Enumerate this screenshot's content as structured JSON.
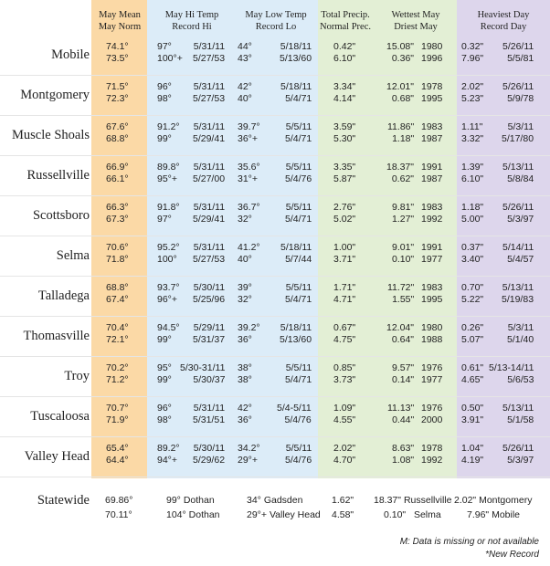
{
  "headers": {
    "mean": [
      "May Mean",
      "May Norm"
    ],
    "hi": [
      "May Hi Temp",
      "Record Hi"
    ],
    "lo": [
      "May Low Temp",
      "Record Lo"
    ],
    "precip": [
      "Total Precip.",
      "Normal Prec."
    ],
    "wettest": [
      "Wettest May",
      "Driest May"
    ],
    "heaviest": [
      "Heaviest Day",
      "Record Day"
    ]
  },
  "colors": {
    "mean": "#fbd9a6",
    "temps": "#dcecf8",
    "precip": "#e3efd5",
    "heaviest": "#ddd6ec"
  },
  "rows": [
    {
      "city": "Mobile",
      "mean": "74.1°",
      "norm": "73.5°",
      "hi": "97°",
      "hi_date": "5/31/11",
      "rechi": "100°+",
      "rechi_date": "5/27/53",
      "lo": "44°",
      "lo_date": "5/18/11",
      "reclo": "43°",
      "reclo_date": "5/13/60",
      "precip": "0.42\"",
      "normprec": "6.10\"",
      "wet": "15.08\"",
      "wet_yr": "1980",
      "dry": "0.36\"",
      "dry_yr": "1996",
      "heavy": "0.32\"",
      "heavy_date": "5/26/11",
      "recday": "7.96\"",
      "recday_date": "5/5/81"
    },
    {
      "city": "Montgomery",
      "mean": "71.5°",
      "norm": "72.3°",
      "hi": "96°",
      "hi_date": "5/31/11",
      "rechi": "98°",
      "rechi_date": "5/27/53",
      "lo": "42°",
      "lo_date": "5/18/11",
      "reclo": "40°",
      "reclo_date": "5/4/71",
      "precip": "3.34\"",
      "normprec": "4.14\"",
      "wet": "12.01\"",
      "wet_yr": "1978",
      "dry": "0.68\"",
      "dry_yr": "1995",
      "heavy": "2.02\"",
      "heavy_date": "5/26/11",
      "recday": "5.23\"",
      "recday_date": "5/9/78"
    },
    {
      "city": "Muscle Shoals",
      "mean": "67.6°",
      "norm": "68.8°",
      "hi": "91.2°",
      "hi_date": "5/31/11",
      "rechi": "99°",
      "rechi_date": "5/29/41",
      "lo": "39.7°",
      "lo_date": "5/5/11",
      "reclo": "36°+",
      "reclo_date": "5/4/71",
      "precip": "3.59\"",
      "normprec": "5.30\"",
      "wet": "11.86\"",
      "wet_yr": "1983",
      "dry": "1.18\"",
      "dry_yr": "1987",
      "heavy": "1.11\"",
      "heavy_date": "5/3/11",
      "recday": "3.32\"",
      "recday_date": "5/17/80"
    },
    {
      "city": "Russellville",
      "mean": "66.9°",
      "norm": "66.1°",
      "hi": "89.8°",
      "hi_date": "5/31/11",
      "rechi": "95°+",
      "rechi_date": "5/27/00",
      "lo": "35.6°",
      "lo_date": "5/5/11",
      "reclo": "31°+",
      "reclo_date": "5/4/76",
      "precip": "3.35\"",
      "normprec": "5.87\"",
      "wet": "18.37\"",
      "wet_yr": "1991",
      "dry": "0.62\"",
      "dry_yr": "1987",
      "heavy": "1.39\"",
      "heavy_date": "5/13/11",
      "recday": "6.10\"",
      "recday_date": "5/8/84"
    },
    {
      "city": "Scottsboro",
      "mean": "66.3°",
      "norm": "67.3°",
      "hi": "91.8°",
      "hi_date": "5/31/11",
      "rechi": "97°",
      "rechi_date": "5/29/41",
      "lo": "36.7°",
      "lo_date": "5/5/11",
      "reclo": "32°",
      "reclo_date": "5/4/71",
      "precip": "2.76\"",
      "normprec": "5.02\"",
      "wet": "9.81\"",
      "wet_yr": "1983",
      "dry": "1.27\"",
      "dry_yr": "1992",
      "heavy": "1.18\"",
      "heavy_date": "5/26/11",
      "recday": "5.00\"",
      "recday_date": "5/3/97"
    },
    {
      "city": "Selma",
      "mean": "70.6°",
      "norm": "71.8°",
      "hi": "95.2°",
      "hi_date": "5/31/11",
      "rechi": "100°",
      "rechi_date": "5/27/53",
      "lo": "41.2°",
      "lo_date": "5/18/11",
      "reclo": "40°",
      "reclo_date": "5/7/44",
      "precip": "1.00\"",
      "normprec": "3.71\"",
      "wet": "9.01\"",
      "wet_yr": "1991",
      "dry": "0.10\"",
      "dry_yr": "1977",
      "heavy": "0.37\"",
      "heavy_date": "5/14/11",
      "recday": "3.40\"",
      "recday_date": "5/4/57"
    },
    {
      "city": "Talladega",
      "mean": "68.8°",
      "norm": "67.4°",
      "hi": "93.7°",
      "hi_date": "5/30/11",
      "rechi": "96°+",
      "rechi_date": "5/25/96",
      "lo": "39°",
      "lo_date": "5/5/11",
      "reclo": "32°",
      "reclo_date": "5/4/71",
      "precip": "1.71\"",
      "normprec": "4.71\"",
      "wet": "11.72\"",
      "wet_yr": "1983",
      "dry": "1.55\"",
      "dry_yr": "1995",
      "heavy": "0.70\"",
      "heavy_date": "5/13/11",
      "recday": "5.22\"",
      "recday_date": "5/19/83"
    },
    {
      "city": "Thomasville",
      "mean": "70.4°",
      "norm": "72.1°",
      "hi": "94.5°",
      "hi_date": "5/29/11",
      "rechi": "99°",
      "rechi_date": "5/31/37",
      "lo": "39.2°",
      "lo_date": "5/18/11",
      "reclo": "36°",
      "reclo_date": "5/13/60",
      "precip": "0.67\"",
      "normprec": "4.75\"",
      "wet": "12.04\"",
      "wet_yr": "1980",
      "dry": "0.64\"",
      "dry_yr": "1988",
      "heavy": "0.26\"",
      "heavy_date": "5/3/11",
      "recday": "5.07\"",
      "recday_date": "5/1/40"
    },
    {
      "city": "Troy",
      "mean": "70.2°",
      "norm": "71.2°",
      "hi": "95°",
      "hi_date": "5/30-31/11",
      "rechi": "99°",
      "rechi_date": "5/30/37",
      "lo": "38°",
      "lo_date": "5/5/11",
      "reclo": "38°",
      "reclo_date": "5/4/71",
      "precip": "0.85\"",
      "normprec": "3.73\"",
      "wet": "9.57\"",
      "wet_yr": "1976",
      "dry": "0.14\"",
      "dry_yr": "1977",
      "heavy": "0.61\"",
      "heavy_date": "5/13-14/11",
      "recday": "4.65\"",
      "recday_date": "5/6/53"
    },
    {
      "city": "Tuscaloosa",
      "mean": "70.7°",
      "norm": "71.9°",
      "hi": "96°",
      "hi_date": "5/31/11",
      "rechi": "98°",
      "rechi_date": "5/31/51",
      "lo": "42°",
      "lo_date": "5/4-5/11",
      "reclo": "36°",
      "reclo_date": "5/4/76",
      "precip": "1.09\"",
      "normprec": "4.55\"",
      "wet": "11.13\"",
      "wet_yr": "1976",
      "dry": "0.44\"",
      "dry_yr": "2000",
      "heavy": "0.50\"",
      "heavy_date": "5/13/11",
      "recday": "3.91\"",
      "recday_date": "5/1/58"
    },
    {
      "city": "Valley Head",
      "mean": "65.4°",
      "norm": "64.4°",
      "hi": "89.2°",
      "hi_date": "5/30/11",
      "rechi": "94°+",
      "rechi_date": "5/29/62",
      "lo": "34.2°",
      "lo_date": "5/5/11",
      "reclo": "29°+",
      "reclo_date": "5/4/76",
      "precip": "2.02\"",
      "normprec": "4.70\"",
      "wet": "8.63\"",
      "wet_yr": "1978",
      "dry": "1.08\"",
      "dry_yr": "1992",
      "heavy": "1.04\"",
      "heavy_date": "5/26/11",
      "recday": "4.19\"",
      "recday_date": "5/3/97"
    }
  ],
  "statewide": {
    "label": "Statewide",
    "mean": "69.86°",
    "norm": "70.11°",
    "hi": "99°",
    "hi_where": "Dothan",
    "rechi": "104°",
    "rechi_where": "Dothan",
    "lo": "34°",
    "lo_where": "Gadsden",
    "reclo": "29°+",
    "reclo_where": "Valley Head",
    "precip": "1.62\"",
    "normprec": "4.58\"",
    "wet": "18.37\"",
    "wet_where": "Russellville",
    "dry": "0.10\"",
    "dry_where": "Selma",
    "heavy": "2.02\"",
    "heavy_where": "Montgomery",
    "recday": "7.96\"",
    "recday_where": "Mobile"
  },
  "footnotes": [
    "M: Data is missing or not available",
    "*New Record"
  ]
}
